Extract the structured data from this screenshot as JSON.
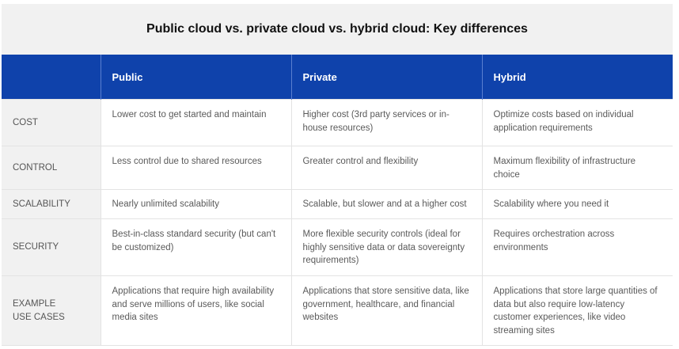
{
  "title": "Public cloud vs. private cloud vs. hybrid cloud: Key differences",
  "columns": [
    "",
    "Public",
    "Private",
    "Hybrid"
  ],
  "rows": [
    {
      "label": "COST",
      "cells": [
        "Lower cost to get started and maintain",
        "Higher cost (3rd party services or in-house resources)",
        "Optimize costs based on individual application requirements"
      ]
    },
    {
      "label": "CONTROL",
      "cells": [
        "Less control due to shared resources",
        "Greater control and flexibility",
        "Maximum flexibility of infrastructure choice"
      ]
    },
    {
      "label": "SCALABILITY",
      "cells": [
        "Nearly unlimited scalability",
        "Scalable, but slower and at a higher cost",
        "Scalability where you need it"
      ]
    },
    {
      "label": "SECURITY",
      "cells": [
        "Best-in-class standard security (but can't be customized)",
        "More flexible security controls (ideal for highly sensitive data or data sovereignty requirements)",
        "Requires orchestration across environments"
      ]
    },
    {
      "label": "EXAMPLE\nUSE CASES",
      "cells": [
        "Applications that require high availability and serve millions of users, like social media sites",
        "Applications that store sensitive data, like government, healthcare, and financial websites",
        "Applications that store large quantities of data but also require low-latency customer experiences, like video streaming sites"
      ]
    }
  ],
  "colors": {
    "header": "#0f42ab",
    "label_bg": "#f1f1f1",
    "title_bg": "#f1f1f1"
  }
}
